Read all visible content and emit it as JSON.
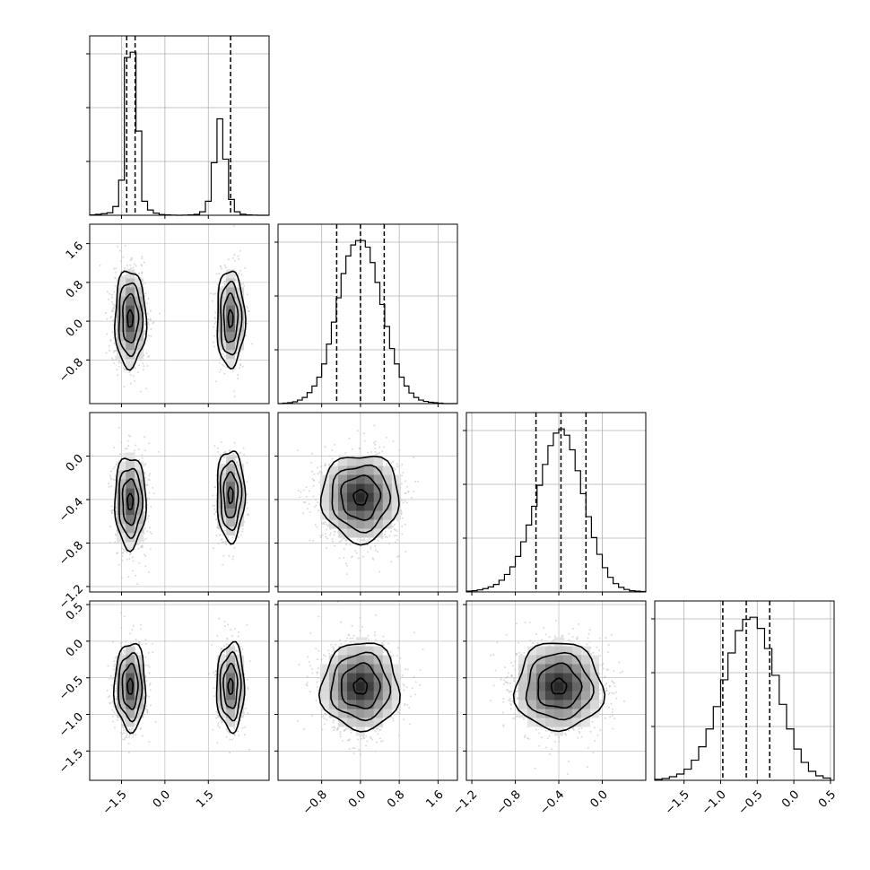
{
  "chart_data": {
    "type": "corner",
    "title": "",
    "parameters": [
      "",
      "",
      "",
      ""
    ],
    "colors": {
      "line": "#000000",
      "grid": "#b0b0b0",
      "scatter": "#bbbbbb",
      "density_max": "#000000"
    },
    "axes": [
      {
        "range": [
          -2.6,
          3.6
        ],
        "ticks": [
          -1.5,
          0.0,
          1.5
        ],
        "tick_labels": [
          "−1.5",
          "0.0",
          "1.5"
        ]
      },
      {
        "range": [
          -1.7,
          2.0
        ],
        "ticks": [
          -0.8,
          0.0,
          0.8,
          1.6
        ],
        "tick_labels": [
          "−0.8",
          "0.0",
          "0.8",
          "1.6"
        ]
      },
      {
        "range": [
          -1.25,
          0.4
        ],
        "ticks": [
          -1.2,
          -0.8,
          -0.4,
          0.0
        ],
        "tick_labels": [
          "−1.2",
          "−0.8",
          "−0.4",
          "0.0"
        ]
      },
      {
        "range": [
          -1.9,
          0.55
        ],
        "ticks": [
          -1.5,
          -1.0,
          -0.5,
          0.0,
          0.5
        ],
        "tick_labels": [
          "−1.5",
          "−1.0",
          "−0.5",
          "0.0",
          "0.5"
        ]
      }
    ],
    "quantile_lines": [
      [
        -1.32,
        -1.03,
        2.27
      ],
      [
        -0.49,
        0.0,
        0.49
      ],
      [
        -0.61,
        -0.38,
        -0.15
      ],
      [
        -0.97,
        -0.65,
        -0.33
      ]
    ],
    "histograms": [
      {
        "bin_edges": [
          -2.6,
          -2.4,
          -2.2,
          -2.0,
          -1.8,
          -1.6,
          -1.4,
          -1.2,
          -1.0,
          -0.8,
          -0.6,
          -0.4,
          -0.2,
          0.0,
          0.2,
          0.4,
          0.6,
          0.8,
          1.0,
          1.2,
          1.4,
          1.6,
          1.8,
          2.0,
          2.2,
          2.4,
          2.6,
          2.8,
          3.0,
          3.2,
          3.4,
          3.6
        ],
        "counts": [
          2,
          5,
          9,
          14,
          50,
          200,
          900,
          930,
          480,
          80,
          30,
          12,
          4,
          2,
          1,
          0,
          1,
          2,
          5,
          20,
          80,
          300,
          550,
          320,
          90,
          20,
          6,
          2,
          1,
          0,
          0
        ]
      },
      {
        "bin_edges": [
          -1.7,
          -1.6,
          -1.5,
          -1.4,
          -1.3,
          -1.2,
          -1.1,
          -1.0,
          -0.9,
          -0.8,
          -0.7,
          -0.6,
          -0.5,
          -0.4,
          -0.3,
          -0.2,
          -0.1,
          0.0,
          0.1,
          0.2,
          0.3,
          0.4,
          0.5,
          0.6,
          0.7,
          0.8,
          0.9,
          1.0,
          1.1,
          1.2,
          1.3,
          1.4,
          1.5,
          1.6,
          1.7,
          1.8,
          1.9,
          2.0
        ],
        "counts": [
          0,
          1,
          2,
          4,
          8,
          14,
          25,
          40,
          60,
          90,
          135,
          185,
          240,
          295,
          335,
          360,
          370,
          370,
          355,
          320,
          275,
          225,
          175,
          125,
          90,
          60,
          40,
          24,
          14,
          8,
          5,
          3,
          2,
          1,
          0,
          0,
          0
        ]
      },
      {
        "bin_edges": [
          -1.25,
          -1.2,
          -1.15,
          -1.1,
          -1.05,
          -1.0,
          -0.95,
          -0.9,
          -0.85,
          -0.8,
          -0.75,
          -0.7,
          -0.65,
          -0.6,
          -0.55,
          -0.5,
          -0.45,
          -0.4,
          -0.35,
          -0.3,
          -0.25,
          -0.2,
          -0.15,
          -0.1,
          -0.05,
          0.0,
          0.05,
          0.1,
          0.15,
          0.2,
          0.25,
          0.3,
          0.35,
          0.4
        ],
        "counts": [
          2,
          3,
          5,
          8,
          12,
          18,
          28,
          42,
          60,
          85,
          120,
          160,
          205,
          255,
          305,
          350,
          380,
          390,
          375,
          340,
          290,
          235,
          180,
          130,
          90,
          58,
          35,
          20,
          11,
          6,
          3,
          2,
          1
        ]
      },
      {
        "bin_edges": [
          -1.9,
          -1.8,
          -1.7,
          -1.6,
          -1.5,
          -1.4,
          -1.3,
          -1.2,
          -1.1,
          -1.0,
          -0.9,
          -0.8,
          -0.7,
          -0.6,
          -0.5,
          -0.4,
          -0.3,
          -0.2,
          -0.1,
          0.0,
          0.1,
          0.2,
          0.3,
          0.4,
          0.5
        ],
        "counts": [
          2,
          4,
          8,
          14,
          25,
          45,
          75,
          115,
          165,
          225,
          285,
          335,
          360,
          365,
          340,
          295,
          235,
          170,
          115,
          70,
          40,
          20,
          10,
          5
        ]
      }
    ],
    "pairs": [
      {
        "x": 0,
        "y": 1,
        "modes": [
          {
            "cx": -1.2,
            "cy": 0.05,
            "sx": 0.27,
            "sy": 0.5,
            "weight": 0.64
          },
          {
            "cx": 2.27,
            "cy": 0.05,
            "sx": 0.24,
            "sy": 0.5,
            "weight": 0.36
          }
        ]
      },
      {
        "x": 0,
        "y": 2,
        "modes": [
          {
            "cx": -1.2,
            "cy": -0.42,
            "sx": 0.27,
            "sy": 0.21,
            "weight": 0.64
          },
          {
            "cx": 2.27,
            "cy": -0.36,
            "sx": 0.24,
            "sy": 0.21,
            "weight": 0.36
          }
        ]
      },
      {
        "x": 1,
        "y": 2,
        "modes": [
          {
            "cx": 0.0,
            "cy": -0.38,
            "sx": 0.4,
            "sy": 0.2,
            "weight": 1.0
          }
        ]
      },
      {
        "x": 0,
        "y": 3,
        "modes": [
          {
            "cx": -1.2,
            "cy": -0.62,
            "sx": 0.27,
            "sy": 0.3,
            "weight": 0.64
          },
          {
            "cx": 2.27,
            "cy": -0.62,
            "sx": 0.24,
            "sy": 0.3,
            "weight": 0.36
          }
        ]
      },
      {
        "x": 1,
        "y": 3,
        "modes": [
          {
            "cx": 0.0,
            "cy": -0.62,
            "sx": 0.4,
            "sy": 0.3,
            "weight": 1.0
          }
        ]
      },
      {
        "x": 2,
        "y": 3,
        "modes": [
          {
            "cx": -0.4,
            "cy": -0.62,
            "sx": 0.2,
            "sy": 0.3,
            "weight": 1.0
          }
        ]
      }
    ],
    "contour_levels": [
      0.118,
      0.393,
      0.675,
      0.865
    ],
    "grid": true,
    "legend": "none"
  }
}
